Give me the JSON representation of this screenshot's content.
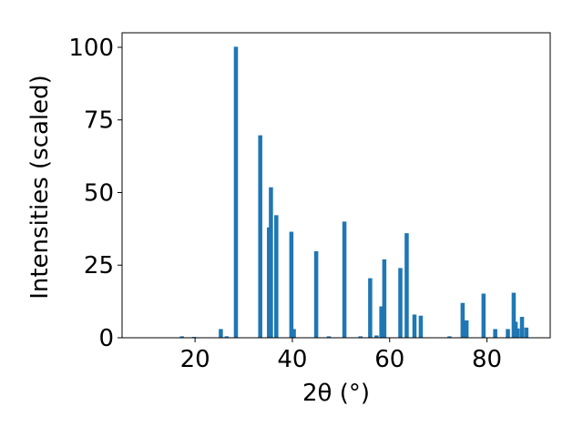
{
  "chart_data": {
    "type": "bar",
    "xlabel": "2θ (°)",
    "ylabel": "Intensities (scaled)",
    "xlim": [
      5,
      93
    ],
    "ylim": [
      0,
      105
    ],
    "xticks": [
      "20",
      "40",
      "60",
      "80"
    ],
    "yticks": [
      "0",
      "25",
      "50",
      "75",
      "100"
    ],
    "bar_color": "#1f77b4",
    "bar_width": 0.85,
    "grid": false,
    "series": [
      {
        "x": [
          17.3,
          19.8,
          25.3,
          26.5,
          28.4,
          33.4,
          35.2,
          35.6,
          36.7,
          39.8,
          40.3,
          44.9,
          47.5,
          50.7,
          54.0,
          56.0,
          57.3,
          58.3,
          58.9,
          62.2,
          63.5,
          65.1,
          66.4,
          72.3,
          75.0,
          75.8,
          79.3,
          81.7,
          84.3,
          85.5,
          85.9,
          86.3,
          87.2,
          88.1
        ],
        "y": [
          0.5,
          0.3,
          3.0,
          0.5,
          100.2,
          69.7,
          38.0,
          51.8,
          42.2,
          36.5,
          3.0,
          29.8,
          0.5,
          40.0,
          0.5,
          20.5,
          0.8,
          10.8,
          27.0,
          24.0,
          36.0,
          8.0,
          7.6,
          0.5,
          12.0,
          6.0,
          15.2,
          3.0,
          3.0,
          15.5,
          5.5,
          3.2,
          7.2,
          3.5
        ]
      }
    ]
  }
}
